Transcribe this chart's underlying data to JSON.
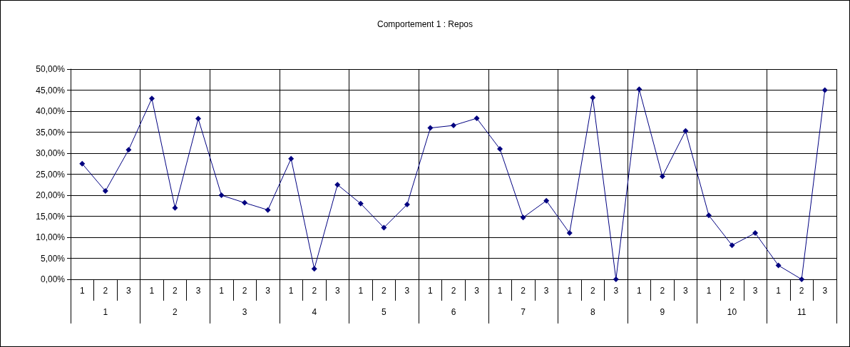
{
  "chart_data": {
    "type": "line",
    "title": "Comportement 1 : Repos",
    "categories": [
      "1",
      "2",
      "3",
      "1",
      "2",
      "3",
      "1",
      "2",
      "3",
      "1",
      "2",
      "3",
      "1",
      "2",
      "3",
      "1",
      "2",
      "3",
      "1",
      "2",
      "3",
      "1",
      "2",
      "3",
      "1",
      "2",
      "3",
      "1",
      "2",
      "3",
      "1",
      "2",
      "3"
    ],
    "annotations": [
      "1",
      "2",
      "3",
      "4",
      "5",
      "6",
      "7",
      "8",
      "9",
      "10",
      "11"
    ],
    "series": [
      {
        "color": "#000080",
        "values": [
          27.5,
          21,
          30.8,
          43,
          17,
          38.2,
          20,
          18.2,
          16.5,
          28.7,
          2.5,
          22.5,
          18,
          12.3,
          17.8,
          36,
          36.6,
          38.3,
          31,
          14.7,
          18.7,
          11,
          43.2,
          0,
          45.2,
          24.5,
          35.3,
          15.2,
          8.1,
          11,
          3.3,
          0,
          45
        ]
      }
    ],
    "ylim": [
      0,
      50
    ],
    "yticks": [
      {
        "value": 0,
        "label": "0,00%"
      },
      {
        "value": 5,
        "label": "5,00%"
      },
      {
        "value": 10,
        "label": "10,00%"
      },
      {
        "value": 15,
        "label": "15,00%"
      },
      {
        "value": 20,
        "label": "20,00%"
      },
      {
        "value": 25,
        "label": "25,00%"
      },
      {
        "value": 30,
        "label": "30,00%"
      },
      {
        "value": 35,
        "label": "35,00%"
      },
      {
        "value": 40,
        "label": "40,00%"
      },
      {
        "value": 45,
        "label": "45,00%"
      },
      {
        "value": 50,
        "label": "50,00%"
      }
    ],
    "grid": true,
    "marker": "diamond",
    "line_style": "solid"
  }
}
